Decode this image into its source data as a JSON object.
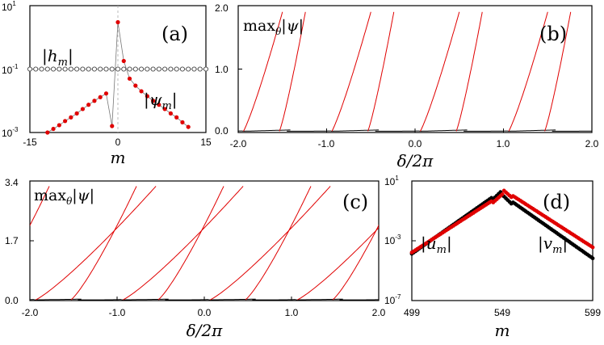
{
  "chart_data": [
    {
      "panel_label": "(a)",
      "type": "scatter",
      "xlabel": "m",
      "yscale": "log",
      "xlim": [
        -15,
        15
      ],
      "ylim": [
        0.001,
        10
      ],
      "xticks": [
        "-15",
        "0",
        "15"
      ],
      "yticks": [
        "10",
        "10",
        "10"
      ],
      "ytick_exponents": [
        "1",
        "-1",
        "-3"
      ],
      "annotations": [
        {
          "base": "|",
          "var": "h",
          "sub": "m",
          "end": "|"
        },
        {
          "base": "|",
          "var": "ψ",
          "sub": "m",
          "end": "|"
        }
      ],
      "series": [
        {
          "color": "#e00000",
          "marker": "filled-circle",
          "x": [
            -12,
            -11,
            -10,
            -9,
            -8,
            -7,
            -6,
            -5,
            -4,
            -3,
            -2,
            -1,
            0,
            1,
            2,
            3,
            4,
            5,
            6,
            7,
            8,
            9,
            10,
            11,
            12
          ],
          "y": [
            0.001,
            0.0013,
            0.0017,
            0.0023,
            0.003,
            0.004,
            0.0055,
            0.0075,
            0.01,
            0.013,
            0.017,
            0.0016,
            3.0,
            0.18,
            0.05,
            0.03,
            0.02,
            0.014,
            0.01,
            0.0075,
            0.0055,
            0.004,
            0.003,
            0.0021,
            0.0015
          ]
        },
        {
          "color": "#444444",
          "marker": "open-circle",
          "x": [
            -15,
            -14,
            -13,
            -12,
            -11,
            -10,
            -9,
            -8,
            -7,
            -6,
            -5,
            -4,
            -3,
            -2,
            -1,
            0,
            1,
            2,
            3,
            4,
            5,
            6,
            7,
            8,
            9,
            10,
            11,
            12,
            13,
            14,
            15
          ],
          "y": [
            0.1,
            0.1,
            0.1,
            0.1,
            0.1,
            0.1,
            0.1,
            0.1,
            0.1,
            0.1,
            0.1,
            0.1,
            0.1,
            0.1,
            0.1,
            0.1,
            0.1,
            0.1,
            0.1,
            0.1,
            0.1,
            0.1,
            0.1,
            0.1,
            0.1,
            0.1,
            0.1,
            0.1,
            0.1,
            0.1,
            0.1
          ]
        }
      ]
    },
    {
      "panel_label": "(b)",
      "type": "line",
      "xlabel": "δ/2π",
      "xlim": [
        -2.0,
        2.0
      ],
      "ylim": [
        0.0,
        2.0
      ],
      "xticks": [
        "-2.0",
        "-1.0",
        "0.0",
        "1.0",
        "2.0"
      ],
      "yticks": [
        "0.0",
        "1.0",
        "2.0"
      ],
      "annotation": {
        "prefix": "max",
        "sub": "θ",
        "expr": "|ψ|"
      },
      "branches": {
        "stable_color": "#000000",
        "unstable_color": "#e00000",
        "resonances": [
          -2,
          -1,
          0,
          1,
          2
        ],
        "floor": 0.02,
        "peak": 1.9,
        "tilt": 0.5
      }
    },
    {
      "panel_label": "(c)",
      "type": "line",
      "xlabel": "δ/2π",
      "xlim": [
        -2.0,
        2.0
      ],
      "ylim": [
        0.0,
        3.4
      ],
      "xticks": [
        "-2.0",
        "-1.0",
        "0.0",
        "1.0",
        "2.0"
      ],
      "yticks": [
        "0.0",
        "1.7",
        "3.4"
      ],
      "annotation": {
        "prefix": "max",
        "sub": "θ",
        "expr": "|ψ|"
      },
      "branches": {
        "stable_color": "#000000",
        "unstable_color": "#e00000",
        "resonances": [
          -2,
          -1,
          0,
          1,
          2
        ],
        "floor": 0.02,
        "peak": 3.25,
        "tilt": 1.55
      }
    },
    {
      "panel_label": "(d)",
      "type": "scatter",
      "xlabel": "m",
      "yscale": "log",
      "xlim": [
        499,
        599
      ],
      "ylim": [
        1e-07,
        10
      ],
      "xticks": [
        "499",
        "549",
        "599"
      ],
      "yticks": [
        "10",
        "10",
        "10"
      ],
      "ytick_exponents": [
        "1",
        "-3",
        "-7"
      ],
      "annotations": [
        {
          "base": "|",
          "var": "u",
          "sub": "m",
          "end": "|"
        },
        {
          "base": "|",
          "var": "v",
          "sub": "m",
          "end": "|"
        }
      ],
      "series": [
        {
          "color": "#000000",
          "center": 549,
          "peak": 1.2,
          "decay_log10_per_site": 0.085
        },
        {
          "color": "#e00000",
          "center": 549,
          "peak": 1.3,
          "decay_log10_per_site": 0.078
        }
      ]
    }
  ]
}
